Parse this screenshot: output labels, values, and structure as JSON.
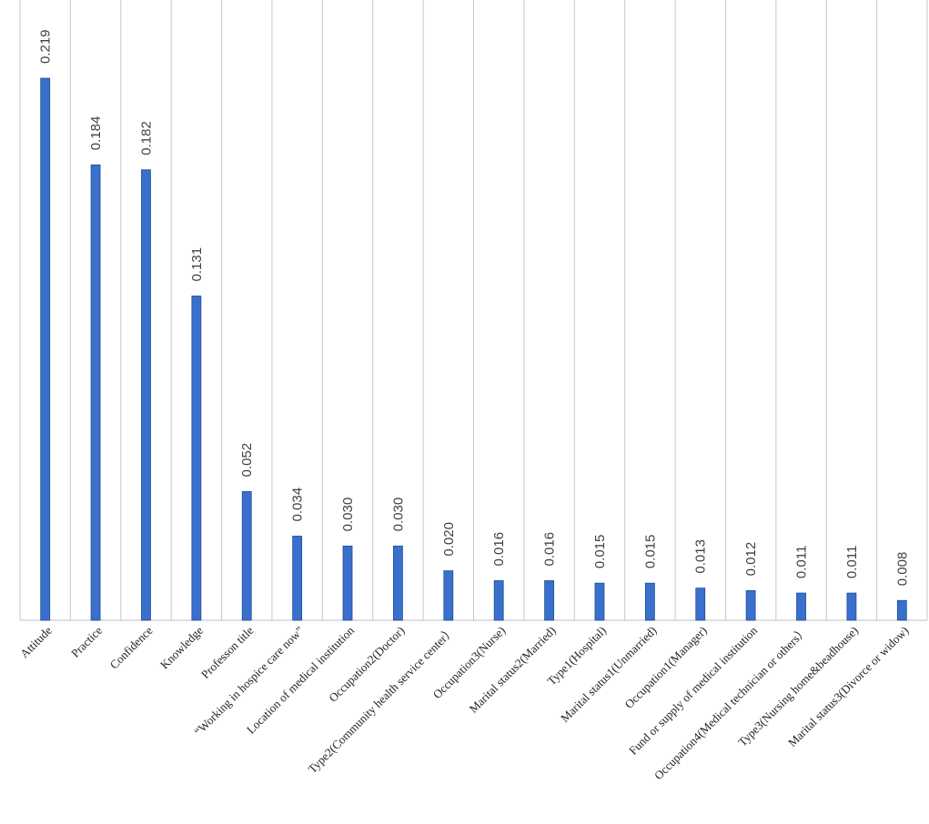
{
  "chart_data": {
    "type": "bar",
    "title": "",
    "xlabel": "",
    "ylabel": "",
    "ylim": [
      0,
      0.23
    ],
    "grid": "vertical lines between categories",
    "bar_color": "#3a6fcc",
    "categories": [
      "Attitude",
      "Practice",
      "Confidence",
      "Knowledge",
      "Professon title",
      "“Working in hospice care now”",
      "Location of medical institution",
      "Occupation2(Doctor)",
      "Type2(Community health service center）",
      "Occupation3(Nurse)",
      "Marital status2(Married)",
      "Type1(Hospital)",
      "Marital status1(Unmarried)",
      "Occupation1(Manager)",
      "Fund or supply of medical institution",
      "Occupation4(Medical technician or others）",
      "Type3(Nursing home&beadhouse)",
      "Marital status3(Divorce or widow)"
    ],
    "values": [
      0.219,
      0.184,
      0.182,
      0.131,
      0.052,
      0.034,
      0.03,
      0.03,
      0.02,
      0.016,
      0.016,
      0.015,
      0.015,
      0.013,
      0.012,
      0.011,
      0.011,
      0.008
    ],
    "value_labels": [
      "0.219",
      "0.184",
      "0.182",
      "0.131",
      "0.052",
      "0.034",
      "0.030",
      "0.030",
      "0.020",
      "0.016",
      "0.016",
      "0.015",
      "0.015",
      "0.013",
      "0.012",
      "0.011",
      "0.011",
      "0.008"
    ]
  }
}
